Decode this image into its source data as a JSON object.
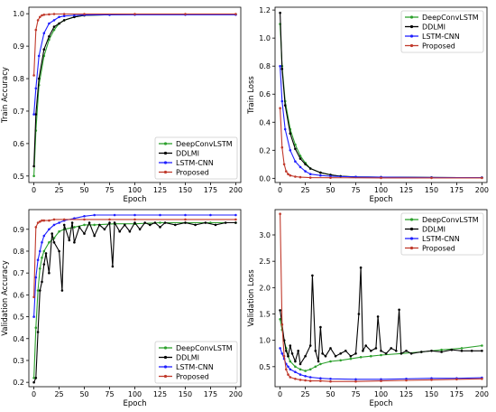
{
  "colors": {
    "DeepConvLSTM": "#2ca02c",
    "DDLMI": "#000000",
    "LSTM-CNN": "#1f1fff",
    "Proposed": "#c0392b"
  },
  "chart_data": [
    {
      "type": "line",
      "xlabel": "Epoch",
      "ylabel": "Train Accuracy",
      "xlim": [
        -5,
        205
      ],
      "ylim": [
        0.48,
        1.02
      ],
      "xticks": [
        0,
        25,
        50,
        75,
        100,
        125,
        150,
        175,
        200
      ],
      "yticks": [
        0.5,
        0.6,
        0.7,
        0.8,
        0.9,
        1.0
      ],
      "ytick_labels": [
        "0.5",
        "0.6",
        "0.7",
        "0.8",
        "0.9",
        "1.0"
      ],
      "grid": false,
      "legend_position": "lower-right",
      "series": [
        {
          "name": "DeepConvLSTM",
          "x": [
            0,
            2,
            5,
            10,
            15,
            20,
            25,
            30,
            40,
            50,
            75,
            100,
            150,
            200
          ],
          "y": [
            0.5,
            0.64,
            0.78,
            0.87,
            0.92,
            0.95,
            0.97,
            0.98,
            0.99,
            0.995,
            0.997,
            0.998,
            0.998,
            0.998
          ]
        },
        {
          "name": "DDLMI",
          "x": [
            0,
            2,
            5,
            10,
            15,
            20,
            25,
            30,
            40,
            50,
            75,
            100,
            150,
            200
          ],
          "y": [
            0.53,
            0.69,
            0.8,
            0.89,
            0.93,
            0.96,
            0.97,
            0.98,
            0.99,
            0.995,
            0.997,
            0.998,
            0.998,
            0.998
          ]
        },
        {
          "name": "LSTM-CNN",
          "x": [
            0,
            2,
            5,
            10,
            15,
            20,
            25,
            30,
            40,
            50,
            75,
            100,
            150,
            200
          ],
          "y": [
            0.69,
            0.77,
            0.87,
            0.94,
            0.97,
            0.98,
            0.99,
            0.993,
            0.995,
            0.996,
            0.997,
            0.997,
            0.997,
            0.997
          ]
        },
        {
          "name": "Proposed",
          "x": [
            0,
            2,
            4,
            6,
            8,
            10,
            15,
            20,
            30,
            50,
            100,
            150,
            200
          ],
          "y": [
            0.81,
            0.95,
            0.98,
            0.99,
            0.995,
            0.997,
            0.998,
            0.999,
            0.999,
            0.999,
            0.999,
            0.999,
            0.999
          ]
        }
      ]
    },
    {
      "type": "line",
      "xlabel": "Epoch",
      "ylabel": "Train Loss",
      "xlim": [
        -5,
        205
      ],
      "ylim": [
        -0.03,
        1.22
      ],
      "xticks": [
        0,
        25,
        50,
        75,
        100,
        125,
        150,
        175,
        200
      ],
      "yticks": [
        0.0,
        0.2,
        0.4,
        0.6,
        0.8,
        1.0,
        1.2
      ],
      "ytick_labels": [
        "0.0",
        "0.2",
        "0.4",
        "0.6",
        "0.8",
        "1.0",
        "1.2"
      ],
      "grid": false,
      "legend_position": "top-right",
      "series": [
        {
          "name": "DeepConvLSTM",
          "x": [
            0,
            2,
            5,
            10,
            15,
            20,
            25,
            30,
            40,
            50,
            60,
            75,
            100,
            150,
            200
          ],
          "y": [
            1.1,
            0.8,
            0.55,
            0.35,
            0.24,
            0.16,
            0.11,
            0.07,
            0.04,
            0.025,
            0.015,
            0.01,
            0.008,
            0.006,
            0.005
          ]
        },
        {
          "name": "DDLMI",
          "x": [
            0,
            2,
            5,
            10,
            15,
            20,
            25,
            30,
            40,
            50,
            60,
            75,
            100,
            150,
            200
          ],
          "y": [
            1.18,
            0.78,
            0.52,
            0.32,
            0.21,
            0.14,
            0.1,
            0.07,
            0.04,
            0.025,
            0.015,
            0.01,
            0.008,
            0.006,
            0.005
          ]
        },
        {
          "name": "LSTM-CNN",
          "x": [
            0,
            2,
            5,
            10,
            15,
            20,
            25,
            30,
            40,
            50,
            75,
            100,
            150,
            200
          ],
          "y": [
            0.8,
            0.55,
            0.35,
            0.2,
            0.12,
            0.08,
            0.05,
            0.03,
            0.02,
            0.015,
            0.01,
            0.008,
            0.006,
            0.005
          ]
        },
        {
          "name": "Proposed",
          "x": [
            0,
            2,
            4,
            6,
            8,
            10,
            15,
            20,
            30,
            50,
            100,
            150,
            200
          ],
          "y": [
            0.5,
            0.22,
            0.1,
            0.05,
            0.03,
            0.02,
            0.012,
            0.008,
            0.005,
            0.004,
            0.003,
            0.003,
            0.003
          ]
        }
      ]
    },
    {
      "type": "line",
      "xlabel": "Epoch",
      "ylabel": "Validation Accuracy",
      "xlim": [
        -5,
        205
      ],
      "ylim": [
        0.18,
        0.99
      ],
      "xticks": [
        0,
        25,
        50,
        75,
        100,
        125,
        150,
        175,
        200
      ],
      "yticks": [
        0.2,
        0.3,
        0.4,
        0.5,
        0.6,
        0.7,
        0.8,
        0.9
      ],
      "ytick_labels": [
        "0.2",
        "0.3",
        "0.4",
        "0.5",
        "0.6",
        "0.7",
        "0.8",
        "0.9"
      ],
      "grid": false,
      "legend_position": "lower-right",
      "series": [
        {
          "name": "DeepConvLSTM",
          "x": [
            0,
            2,
            4,
            6,
            8,
            10,
            15,
            20,
            25,
            30,
            40,
            50,
            60,
            80,
            100,
            125,
            150,
            175,
            200
          ],
          "y": [
            0.22,
            0.45,
            0.62,
            0.72,
            0.77,
            0.8,
            0.84,
            0.86,
            0.89,
            0.9,
            0.91,
            0.92,
            0.92,
            0.925,
            0.925,
            0.93,
            0.93,
            0.93,
            0.93
          ]
        },
        {
          "name": "DDLMI",
          "x": [
            0,
            2,
            4,
            6,
            8,
            10,
            12,
            15,
            18,
            20,
            25,
            28,
            30,
            35,
            38,
            40,
            45,
            50,
            55,
            60,
            65,
            70,
            75,
            78,
            80,
            85,
            90,
            95,
            100,
            105,
            110,
            115,
            120,
            125,
            130,
            140,
            150,
            160,
            170,
            180,
            190,
            200
          ],
          "y": [
            0.2,
            0.22,
            0.43,
            0.62,
            0.66,
            0.74,
            0.79,
            0.7,
            0.88,
            0.84,
            0.8,
            0.62,
            0.92,
            0.85,
            0.93,
            0.84,
            0.91,
            0.88,
            0.93,
            0.87,
            0.92,
            0.9,
            0.93,
            0.73,
            0.93,
            0.89,
            0.92,
            0.89,
            0.93,
            0.9,
            0.93,
            0.92,
            0.93,
            0.91,
            0.93,
            0.92,
            0.93,
            0.92,
            0.93,
            0.92,
            0.93,
            0.93
          ]
        },
        {
          "name": "LSTM-CNN",
          "x": [
            0,
            2,
            4,
            6,
            8,
            10,
            15,
            20,
            25,
            30,
            40,
            50,
            60,
            80,
            100,
            125,
            150,
            175,
            200
          ],
          "y": [
            0.5,
            0.68,
            0.76,
            0.8,
            0.84,
            0.87,
            0.9,
            0.92,
            0.93,
            0.94,
            0.95,
            0.96,
            0.965,
            0.965,
            0.965,
            0.965,
            0.965,
            0.965,
            0.965
          ]
        },
        {
          "name": "Proposed",
          "x": [
            0,
            2,
            4,
            6,
            8,
            10,
            15,
            20,
            30,
            50,
            75,
            100,
            150,
            200
          ],
          "y": [
            0.59,
            0.91,
            0.93,
            0.935,
            0.94,
            0.94,
            0.94,
            0.945,
            0.945,
            0.945,
            0.945,
            0.945,
            0.945,
            0.945
          ]
        }
      ]
    },
    {
      "type": "line",
      "xlabel": "Epoch",
      "ylabel": "Validation Loss",
      "xlim": [
        -5,
        205
      ],
      "ylim": [
        0.12,
        3.48
      ],
      "xticks": [
        0,
        25,
        50,
        75,
        100,
        125,
        150,
        175,
        200
      ],
      "yticks": [
        0.5,
        1.0,
        1.5,
        2.0,
        2.5,
        3.0
      ],
      "ytick_labels": [
        "0.5",
        "1.0",
        "1.5",
        "2.0",
        "2.5",
        "3.0"
      ],
      "grid": false,
      "legend_position": "top-right",
      "series": [
        {
          "name": "DeepConvLSTM",
          "x": [
            0,
            2,
            4,
            6,
            8,
            10,
            15,
            20,
            25,
            30,
            35,
            40,
            50,
            60,
            70,
            80,
            90,
            100,
            120,
            140,
            160,
            180,
            200
          ],
          "y": [
            1.4,
            1.2,
            1.0,
            0.85,
            0.7,
            0.6,
            0.5,
            0.45,
            0.42,
            0.45,
            0.5,
            0.55,
            0.6,
            0.62,
            0.65,
            0.68,
            0.7,
            0.72,
            0.75,
            0.78,
            0.82,
            0.85,
            0.9
          ]
        },
        {
          "name": "DDLMI",
          "x": [
            0,
            2,
            4,
            6,
            8,
            10,
            12,
            15,
            18,
            20,
            25,
            30,
            32,
            35,
            38,
            40,
            42,
            45,
            50,
            55,
            60,
            65,
            70,
            75,
            78,
            80,
            82,
            85,
            90,
            95,
            97,
            100,
            105,
            110,
            115,
            118,
            120,
            125,
            130,
            140,
            150,
            160,
            170,
            180,
            190,
            200
          ],
          "y": [
            1.57,
            1.3,
            1.0,
            0.8,
            0.7,
            0.9,
            0.75,
            0.6,
            0.8,
            0.55,
            0.7,
            0.9,
            2.23,
            0.8,
            0.6,
            1.25,
            0.75,
            0.7,
            0.85,
            0.7,
            0.75,
            0.8,
            0.7,
            0.75,
            1.5,
            2.38,
            0.8,
            0.9,
            0.8,
            0.85,
            1.45,
            0.8,
            0.75,
            0.85,
            0.8,
            1.58,
            0.75,
            0.8,
            0.75,
            0.78,
            0.8,
            0.78,
            0.82,
            0.8,
            0.8,
            0.8
          ]
        },
        {
          "name": "LSTM-CNN",
          "x": [
            0,
            2,
            4,
            6,
            8,
            10,
            15,
            20,
            25,
            30,
            40,
            50,
            75,
            100,
            125,
            150,
            175,
            200
          ],
          "y": [
            0.85,
            0.75,
            0.65,
            0.55,
            0.5,
            0.45,
            0.4,
            0.35,
            0.32,
            0.3,
            0.28,
            0.27,
            0.26,
            0.26,
            0.27,
            0.28,
            0.28,
            0.29
          ]
        },
        {
          "name": "Proposed",
          "x": [
            0,
            2,
            4,
            6,
            8,
            10,
            15,
            20,
            25,
            30,
            40,
            50,
            75,
            100,
            125,
            150,
            175,
            200
          ],
          "y": [
            3.4,
            1.3,
            0.7,
            0.45,
            0.35,
            0.3,
            0.27,
            0.25,
            0.24,
            0.23,
            0.23,
            0.22,
            0.22,
            0.23,
            0.24,
            0.25,
            0.26,
            0.27
          ]
        }
      ]
    }
  ]
}
